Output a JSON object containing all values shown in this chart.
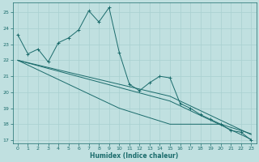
{
  "xlabel": "Humidex (Indice chaleur)",
  "bg_color": "#c0e0e0",
  "line_color": "#1a6b6b",
  "grid_color": "#a8d0d0",
  "xlim": [
    -0.5,
    23.5
  ],
  "ylim": [
    16.8,
    25.6
  ],
  "yticks": [
    17,
    18,
    19,
    20,
    21,
    22,
    23,
    24,
    25
  ],
  "xticks": [
    0,
    1,
    2,
    3,
    4,
    5,
    6,
    7,
    8,
    9,
    10,
    11,
    12,
    13,
    14,
    15,
    16,
    17,
    18,
    19,
    20,
    21,
    22,
    23
  ],
  "series_main": [
    23.6,
    22.4,
    22.7,
    21.9,
    23.1,
    23.4,
    23.9,
    25.1,
    24.4,
    25.3,
    22.5,
    20.5,
    20.1,
    20.6,
    21.0,
    20.9,
    19.3,
    19.0,
    18.6,
    18.3,
    18.0,
    17.6,
    17.5,
    17.0
  ],
  "series_line1": [
    22.0,
    21.85,
    21.7,
    21.55,
    21.4,
    21.25,
    21.1,
    20.95,
    20.8,
    20.65,
    20.5,
    20.35,
    20.2,
    20.05,
    19.9,
    19.75,
    19.45,
    19.15,
    18.85,
    18.55,
    18.25,
    17.95,
    17.65,
    17.35
  ],
  "series_line2": [
    22.0,
    21.83,
    21.66,
    21.49,
    21.32,
    21.15,
    20.98,
    20.81,
    20.64,
    20.47,
    20.3,
    20.13,
    19.96,
    19.79,
    19.62,
    19.45,
    19.15,
    18.85,
    18.55,
    18.25,
    17.95,
    17.65,
    17.35,
    17.05
  ],
  "series_line3": [
    22.0,
    21.7,
    21.4,
    21.1,
    20.8,
    20.5,
    20.2,
    19.9,
    19.6,
    19.3,
    19.0,
    18.8,
    18.6,
    18.4,
    18.2,
    18.0,
    18.0,
    18.0,
    18.0,
    18.0,
    18.0,
    17.8,
    17.6,
    17.4
  ]
}
